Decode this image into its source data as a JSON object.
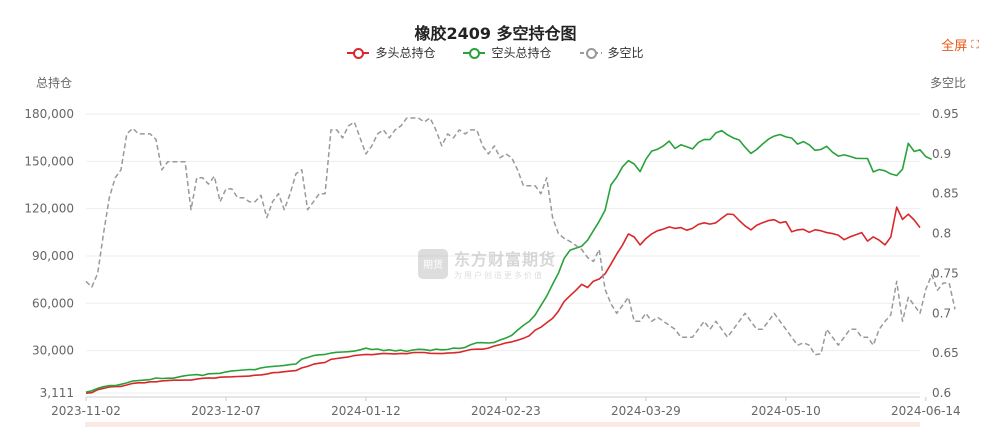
{
  "fullscreen": {
    "label": "全屏",
    "icon": "fullscreen-icon"
  },
  "watermark": {
    "title": "东方财富期货",
    "subtitle": "为用户创造更多价值",
    "logo_text": "期货"
  },
  "colors": {
    "long": "#d9282b",
    "short": "#2aa23c",
    "ratio": "#999999",
    "grid": "#eeeeee"
  },
  "chart_data": {
    "type": "line",
    "title": "橡胶2409 多空持仓图",
    "left_axis_label": "总持仓",
    "right_axis_label": "多空比",
    "left_ticks": [
      "3,111",
      "30,000",
      "60,000",
      "90,000",
      "120,000",
      "150,000",
      "180,000"
    ],
    "left_tick_values": [
      3111,
      30000,
      60000,
      90000,
      120000,
      150000,
      180000
    ],
    "right_ticks": [
      "0.6",
      "0.65",
      "0.7",
      "0.75",
      "0.8",
      "0.85",
      "0.9",
      "0.95"
    ],
    "right_tick_values": [
      0.6,
      0.65,
      0.7,
      0.75,
      0.8,
      0.85,
      0.9,
      0.95
    ],
    "left_range": [
      3111,
      180000
    ],
    "right_range": [
      0.6,
      0.95
    ],
    "x_tick_labels": [
      "2023-11-02",
      "2023-12-07",
      "2024-01-12",
      "2024-02-23",
      "2024-03-29",
      "2024-05-10",
      "2024-06-14"
    ],
    "x_tick_index": [
      0,
      24,
      48,
      72,
      96,
      120,
      144
    ],
    "legend_position": "top-center",
    "series": [
      {
        "name": "多头总持仓",
        "axis": "left",
        "values": [
          3000,
          3300,
          5200,
          6000,
          6900,
          7200,
          7300,
          8200,
          9200,
          9600,
          9600,
          10200,
          10200,
          10800,
          11000,
          11200,
          11200,
          11300,
          11300,
          11900,
          12400,
          12700,
          12500,
          13100,
          13300,
          13400,
          13600,
          13700,
          13800,
          14400,
          14600,
          15100,
          16000,
          16200,
          16600,
          17000,
          17300,
          19000,
          20000,
          21400,
          22000,
          22500,
          24500,
          25000,
          25500,
          26000,
          26800,
          27200,
          27600,
          27400,
          27800,
          28200,
          28000,
          27900,
          28200,
          28000,
          28700,
          28800,
          28800,
          28300,
          28200,
          28100,
          28400,
          28600,
          28900,
          29800,
          30700,
          30900,
          30900,
          31600,
          32900,
          33800,
          34900,
          35500,
          36600,
          37800,
          39400,
          42900,
          44800,
          47700,
          50400,
          55000,
          61200,
          64800,
          68200,
          72000,
          70000,
          74000,
          75400,
          78700,
          84800,
          91200,
          97000,
          104000,
          102000,
          97000,
          101000,
          104000,
          106000,
          107000,
          108400,
          107500,
          108000,
          106300,
          107500,
          110000,
          111000,
          110200,
          111000,
          113900,
          116600,
          116300,
          112500,
          109100,
          106500,
          109500,
          111000,
          112400,
          113000,
          111000,
          111700,
          105300,
          106500,
          106900,
          105000,
          106600,
          106000,
          104800,
          104200,
          103200,
          100300,
          102100,
          103500,
          104800,
          99400,
          102100,
          100000,
          97000,
          102000,
          121000,
          113200,
          116500,
          112800,
          108000
        ]
      },
      {
        "name": "空头总持仓",
        "axis": "left",
        "values": [
          3700,
          4500,
          6000,
          7100,
          7800,
          7800,
          8600,
          9500,
          10700,
          11000,
          11300,
          11600,
          12600,
          12300,
          12500,
          12500,
          13400,
          14100,
          14500,
          14800,
          14300,
          15300,
          15400,
          15600,
          16500,
          17100,
          17400,
          17700,
          18000,
          17900,
          19000,
          19600,
          20000,
          20200,
          20600,
          21100,
          21500,
          24600,
          25600,
          26800,
          27300,
          27600,
          28400,
          28900,
          29100,
          29300,
          29700,
          30500,
          31500,
          30700,
          31000,
          30000,
          30500,
          29800,
          30300,
          29500,
          30400,
          30800,
          30600,
          30000,
          30900,
          30500,
          30700,
          31600,
          31400,
          32000,
          33800,
          35000,
          35000,
          34800,
          35200,
          36700,
          38000,
          39600,
          43000,
          46000,
          48500,
          52500,
          58500,
          64500,
          72000,
          79000,
          88500,
          93700,
          95000,
          96200,
          100000,
          106000,
          112000,
          119000,
          135000,
          140000,
          146600,
          150400,
          148300,
          143500,
          151300,
          156500,
          157700,
          159800,
          162800,
          158100,
          160500,
          159200,
          157900,
          162000,
          163900,
          163800,
          168000,
          169500,
          166800,
          164800,
          163500,
          159000,
          155000,
          157500,
          160900,
          164000,
          166000,
          167000,
          165500,
          164800,
          160900,
          162500,
          160500,
          157000,
          157500,
          159500,
          155800,
          153300,
          154100,
          153100,
          151900,
          151800,
          151800,
          143300,
          144800,
          144000,
          142000,
          141000,
          145000,
          161400,
          156200,
          157300,
          153000,
          151300
        ]
      },
      {
        "name": "多空比",
        "axis": "right",
        "dashed": true,
        "values": [
          0.74,
          0.733,
          0.75,
          0.8,
          0.845,
          0.87,
          0.88,
          0.925,
          0.932,
          0.925,
          0.925,
          0.925,
          0.918,
          0.88,
          0.89,
          0.89,
          0.89,
          0.89,
          0.83,
          0.87,
          0.87,
          0.862,
          0.872,
          0.84,
          0.856,
          0.856,
          0.845,
          0.845,
          0.84,
          0.84,
          0.848,
          0.82,
          0.84,
          0.85,
          0.83,
          0.85,
          0.875,
          0.88,
          0.83,
          0.84,
          0.85,
          0.85,
          0.93,
          0.93,
          0.92,
          0.935,
          0.94,
          0.92,
          0.9,
          0.91,
          0.925,
          0.93,
          0.92,
          0.93,
          0.935,
          0.945,
          0.945,
          0.945,
          0.94,
          0.945,
          0.93,
          0.91,
          0.925,
          0.92,
          0.93,
          0.925,
          0.93,
          0.93,
          0.91,
          0.9,
          0.91,
          0.895,
          0.9,
          0.895,
          0.88,
          0.86,
          0.86,
          0.86,
          0.85,
          0.87,
          0.82,
          0.8,
          0.794,
          0.79,
          0.785,
          0.78,
          0.77,
          0.765,
          0.78,
          0.73,
          0.712,
          0.7,
          0.71,
          0.72,
          0.69,
          0.69,
          0.7,
          0.69,
          0.695,
          0.69,
          0.685,
          0.68,
          0.67,
          0.67,
          0.67,
          0.68,
          0.69,
          0.68,
          0.69,
          0.68,
          0.67,
          0.68,
          0.69,
          0.7,
          0.69,
          0.68,
          0.68,
          0.69,
          0.7,
          0.69,
          0.68,
          0.67,
          0.66,
          0.663,
          0.66,
          0.648,
          0.649,
          0.68,
          0.67,
          0.66,
          0.67,
          0.68,
          0.68,
          0.67,
          0.67,
          0.66,
          0.68,
          0.69,
          0.698,
          0.74,
          0.69,
          0.72,
          0.71,
          0.7,
          0.73,
          0.748,
          0.729,
          0.738,
          0.738,
          0.705
        ]
      }
    ]
  }
}
